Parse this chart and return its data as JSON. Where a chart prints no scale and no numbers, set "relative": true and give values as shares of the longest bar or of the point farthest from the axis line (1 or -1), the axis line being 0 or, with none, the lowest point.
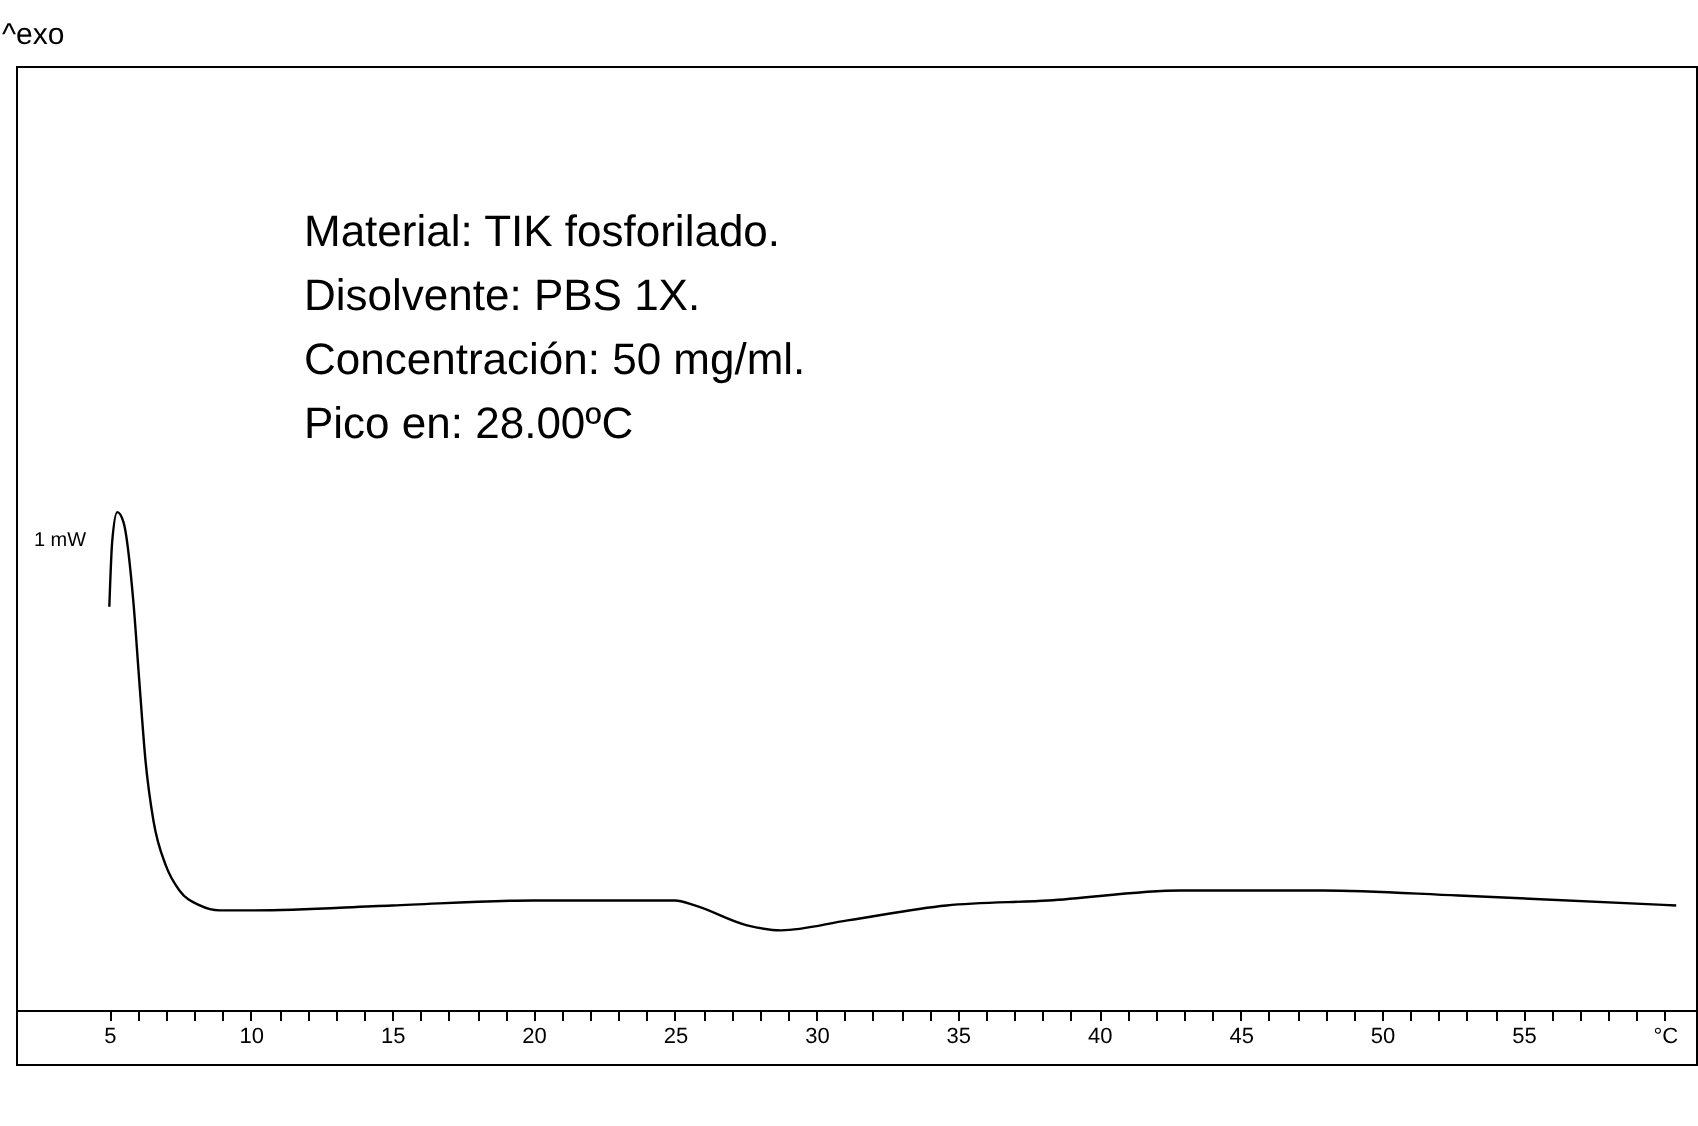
{
  "chart_data": {
    "type": "line",
    "relative": true,
    "annotations": [
      "Material: TIK fosforilado.",
      "Disolvente: PBS 1X.",
      "Concentración: 50 mg/ml.",
      "Pico en: 28.00ºC",
      "1 mW",
      "^exo"
    ],
    "x": [
      5.0,
      5.1,
      5.28,
      5.5,
      5.85,
      6.06,
      6.28,
      6.56,
      7.0,
      7.48,
      8.2,
      8.9,
      10,
      15,
      20,
      25,
      25.7,
      27.55,
      28.75,
      31.1,
      34.6,
      38.2,
      42.9,
      47.9,
      52.7,
      60.4
    ],
    "series": [
      {
        "color": "#000000",
        "values": [
          0.81,
          0.94,
          1.0,
          0.98,
          0.82,
          0.66,
          0.5,
          0.38,
          0.29,
          0.24,
          0.21,
          0.2,
          0.2,
          0.21,
          0.22,
          0.22,
          0.21,
          0.17,
          0.16,
          0.18,
          0.21,
          0.22,
          0.24,
          0.24,
          0.23,
          0.21
        ]
      }
    ],
    "xlim": [
      1.7,
      61.1
    ],
    "xticks": [
      5,
      {
        "value": 6,
        "label": null
      },
      {
        "value": 7,
        "label": null
      },
      {
        "value": 8,
        "label": null
      },
      {
        "value": 9,
        "label": null
      },
      10,
      {
        "value": 11,
        "label": null
      },
      {
        "value": 12,
        "label": null
      },
      {
        "value": 13,
        "label": null
      },
      {
        "value": 14,
        "label": null
      },
      15,
      {
        "value": 16,
        "label": null
      },
      {
        "value": 17,
        "label": null
      },
      {
        "value": 18,
        "label": null
      },
      {
        "value": 19,
        "label": null
      },
      20,
      {
        "value": 21,
        "label": null
      },
      {
        "value": 22,
        "label": null
      },
      {
        "value": 23,
        "label": null
      },
      {
        "value": 24,
        "label": null
      },
      25,
      {
        "value": 26,
        "label": null
      },
      {
        "value": 27,
        "label": null
      },
      {
        "value": 28,
        "label": null
      },
      {
        "value": 29,
        "label": null
      },
      30,
      {
        "value": 31,
        "label": null
      },
      {
        "value": 32,
        "label": null
      },
      {
        "value": 33,
        "label": null
      },
      {
        "value": 34,
        "label": null
      },
      35,
      {
        "value": 36,
        "label": null
      },
      {
        "value": 37,
        "label": null
      },
      {
        "value": 38,
        "label": null
      },
      {
        "value": 39,
        "label": null
      },
      40,
      {
        "value": 41,
        "label": null
      },
      {
        "value": 42,
        "label": null
      },
      {
        "value": 43,
        "label": null
      },
      {
        "value": 44,
        "label": null
      },
      45,
      {
        "value": 46,
        "label": null
      },
      {
        "value": 47,
        "label": null
      },
      {
        "value": 48,
        "label": null
      },
      {
        "value": 49,
        "label": null
      },
      50,
      {
        "value": 51,
        "label": null
      },
      {
        "value": 52,
        "label": null
      },
      {
        "value": 53,
        "label": null
      },
      {
        "value": 54,
        "label": null
      },
      55,
      {
        "value": 56,
        "label": null
      },
      {
        "value": 57,
        "label": null
      },
      {
        "value": 58,
        "label": null
      },
      {
        "value": 59,
        "label": null
      },
      {
        "value": 60,
        "label": "°C"
      }
    ],
    "grid": false,
    "marker": "none",
    "line_style": "solid"
  }
}
